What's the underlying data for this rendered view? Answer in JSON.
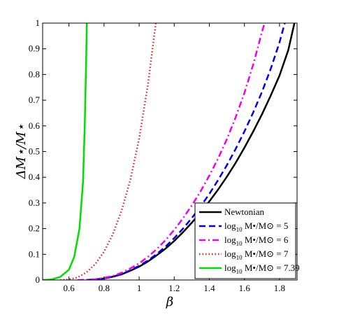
{
  "chart_data": {
    "type": "line",
    "xlabel": "β",
    "ylabel": "ΔM⋆/M⋆",
    "xlim": [
      0.45,
      1.9
    ],
    "ylim": [
      0,
      1
    ],
    "x_ticks": [
      0.6,
      0.8,
      1,
      1.2,
      1.4,
      1.6,
      1.8
    ],
    "x_tick_labels": [
      "0.6",
      "0.8",
      "1",
      "1.2",
      "1.4",
      "1.6",
      "1.8"
    ],
    "y_ticks": [
      0,
      0.1,
      0.2,
      0.3,
      0.4,
      0.5,
      0.6,
      0.7,
      0.8,
      0.9,
      1
    ],
    "y_tick_labels": [
      "0",
      "0.1",
      "0.2",
      "0.3",
      "0.4",
      "0.5",
      "0.6",
      "0.7",
      "0.8",
      "0.9",
      "1"
    ],
    "grid": false,
    "legend_position": "bottom-right",
    "series": [
      {
        "name": "Newtonian",
        "color": "#000000",
        "style": "solid",
        "points": [
          [
            0.7,
            0
          ],
          [
            0.75,
            0.002
          ],
          [
            0.8,
            0.006
          ],
          [
            0.85,
            0.013
          ],
          [
            0.9,
            0.022
          ],
          [
            0.95,
            0.036
          ],
          [
            1.0,
            0.052
          ],
          [
            1.05,
            0.072
          ],
          [
            1.1,
            0.096
          ],
          [
            1.15,
            0.122
          ],
          [
            1.2,
            0.152
          ],
          [
            1.25,
            0.186
          ],
          [
            1.3,
            0.223
          ],
          [
            1.35,
            0.263
          ],
          [
            1.4,
            0.306
          ],
          [
            1.45,
            0.352
          ],
          [
            1.5,
            0.402
          ],
          [
            1.55,
            0.456
          ],
          [
            1.6,
            0.515
          ],
          [
            1.65,
            0.578
          ],
          [
            1.7,
            0.645
          ],
          [
            1.75,
            0.718
          ],
          [
            1.8,
            0.796
          ],
          [
            1.85,
            0.895
          ],
          [
            1.885,
            1.0
          ]
        ]
      },
      {
        "name": "log10 M•/M⊙ = 5",
        "name_main": "log",
        "name_sub": "10",
        "name_rest": " M•/M⊙ = 5",
        "color": "#0000ee",
        "style": "dashed",
        "points": [
          [
            0.7,
            0
          ],
          [
            0.75,
            0.002
          ],
          [
            0.8,
            0.006
          ],
          [
            0.85,
            0.013
          ],
          [
            0.9,
            0.023
          ],
          [
            0.95,
            0.038
          ],
          [
            1.0,
            0.055
          ],
          [
            1.05,
            0.076
          ],
          [
            1.1,
            0.101
          ],
          [
            1.15,
            0.13
          ],
          [
            1.2,
            0.163
          ],
          [
            1.25,
            0.2
          ],
          [
            1.3,
            0.241
          ],
          [
            1.35,
            0.286
          ],
          [
            1.4,
            0.335
          ],
          [
            1.45,
            0.389
          ],
          [
            1.5,
            0.447
          ],
          [
            1.55,
            0.51
          ],
          [
            1.6,
            0.578
          ],
          [
            1.65,
            0.652
          ],
          [
            1.7,
            0.732
          ],
          [
            1.75,
            0.822
          ],
          [
            1.8,
            0.925
          ],
          [
            1.83,
            1.0
          ]
        ]
      },
      {
        "name": "log10 M•/M⊙ = 6",
        "name_main": "log",
        "name_sub": "10",
        "name_rest": " M•/M⊙ = 6",
        "color": "#ee00ee",
        "style": "dashdot",
        "points": [
          [
            0.65,
            0
          ],
          [
            0.7,
            0.001
          ],
          [
            0.75,
            0.003
          ],
          [
            0.8,
            0.008
          ],
          [
            0.85,
            0.016
          ],
          [
            0.9,
            0.028
          ],
          [
            0.95,
            0.045
          ],
          [
            1.0,
            0.065
          ],
          [
            1.05,
            0.09
          ],
          [
            1.1,
            0.12
          ],
          [
            1.15,
            0.155
          ],
          [
            1.2,
            0.195
          ],
          [
            1.25,
            0.24
          ],
          [
            1.3,
            0.29
          ],
          [
            1.35,
            0.345
          ],
          [
            1.4,
            0.406
          ],
          [
            1.45,
            0.473
          ],
          [
            1.5,
            0.548
          ],
          [
            1.55,
            0.633
          ],
          [
            1.6,
            0.728
          ],
          [
            1.65,
            0.838
          ],
          [
            1.7,
            0.965
          ],
          [
            1.715,
            1.0
          ]
        ]
      },
      {
        "name": "log10 M•/M⊙ = 7",
        "name_main": "log",
        "name_sub": "10",
        "name_rest": " M•/M⊙ = 7",
        "color": "#dd2222",
        "style": "dotted",
        "points": [
          [
            0.55,
            0
          ],
          [
            0.6,
            0.002
          ],
          [
            0.65,
            0.01
          ],
          [
            0.7,
            0.03
          ],
          [
            0.75,
            0.062
          ],
          [
            0.8,
            0.11
          ],
          [
            0.85,
            0.178
          ],
          [
            0.9,
            0.27
          ],
          [
            0.95,
            0.39
          ],
          [
            1.0,
            0.55
          ],
          [
            1.05,
            0.76
          ],
          [
            1.08,
            0.92
          ],
          [
            1.095,
            1.0
          ]
        ]
      },
      {
        "name": "log10 M•/M⊙ = 7.39",
        "name_main": "log",
        "name_sub": "10",
        "name_rest": " M•/M⊙ = 7.39",
        "color": "#00dd00",
        "style": "solid",
        "points": [
          [
            0.45,
            0
          ],
          [
            0.5,
            0.002
          ],
          [
            0.55,
            0.012
          ],
          [
            0.6,
            0.04
          ],
          [
            0.63,
            0.09
          ],
          [
            0.66,
            0.2
          ],
          [
            0.68,
            0.38
          ],
          [
            0.69,
            0.6
          ],
          [
            0.698,
            0.85
          ],
          [
            0.702,
            1.0
          ]
        ]
      }
    ]
  }
}
